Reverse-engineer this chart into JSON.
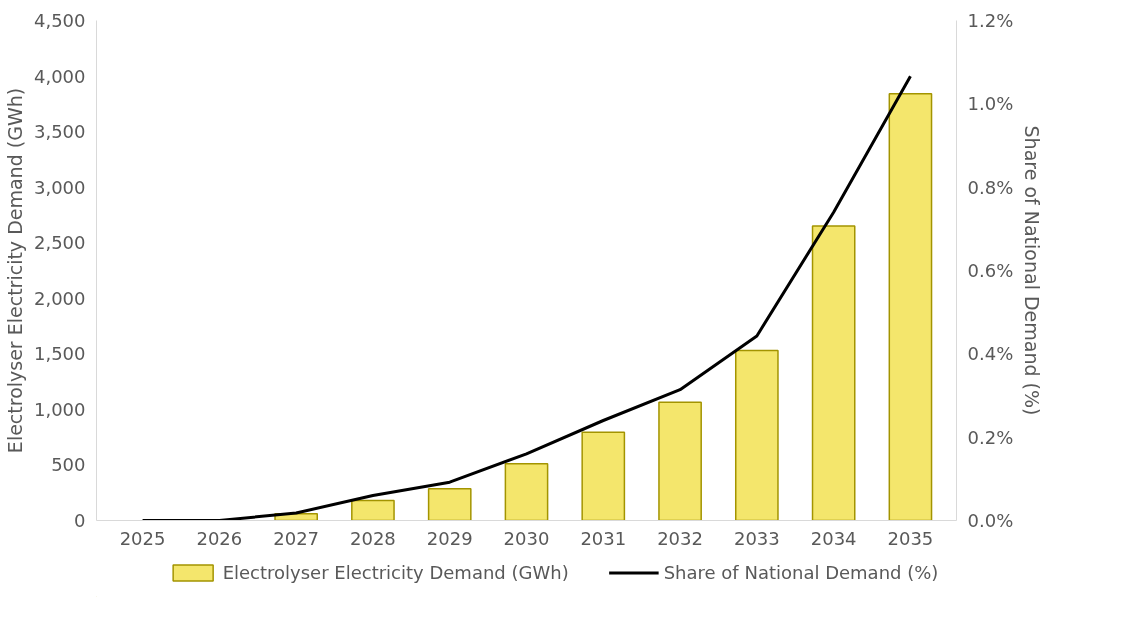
{
  "chart_data": {
    "type": "bar",
    "categories": [
      "2025",
      "2026",
      "2027",
      "2028",
      "2029",
      "2030",
      "2031",
      "2032",
      "2033",
      "2034",
      "2035"
    ],
    "ylabel": "Electrolyser Electricity Demand (GWh)",
    "y2label": "Share of National Demand (%)",
    "series": [
      {
        "name": "Electrolyser Electricity Demand (GWh)",
        "color": "#f4e66c",
        "values": [
          0,
          0,
          60,
          180,
          285,
          510,
          795,
          1065,
          1530,
          2650,
          3840
        ]
      },
      {
        "name": "Share of National Demand (%)",
        "type": "line",
        "axis": "y2",
        "color": "#000000",
        "values": [
          0,
          0,
          0.018,
          0.06,
          0.092,
          0.16,
          0.24,
          0.314,
          0.443,
          0.74,
          1.066
        ]
      }
    ],
    "ylim": [
      0,
      4500
    ],
    "yticks": [
      {
        "value": 0,
        "label": "0"
      },
      {
        "value": 500,
        "label": "500"
      },
      {
        "value": 1000,
        "label": "1,000"
      },
      {
        "value": 1500,
        "label": "1,500"
      },
      {
        "value": 2000,
        "label": "2,000"
      },
      {
        "value": 2500,
        "label": "2,500"
      },
      {
        "value": 3000,
        "label": "3,000"
      },
      {
        "value": 3500,
        "label": "3,500"
      },
      {
        "value": 4000,
        "label": "4,000"
      },
      {
        "value": 4500,
        "label": "4,500"
      }
    ],
    "y2lim": [
      0,
      1.2
    ],
    "y2ticks": [
      {
        "value": 0,
        "label": "0.0%"
      },
      {
        "value": 0.2,
        "label": "0.2%"
      },
      {
        "value": 0.4,
        "label": "0.4%"
      },
      {
        "value": 0.6,
        "label": "0.6%"
      },
      {
        "value": 0.8,
        "label": "0.8%"
      },
      {
        "value": 1.0,
        "label": "1.0%"
      },
      {
        "value": 1.2,
        "label": "1.2%"
      }
    ],
    "grid": false,
    "legend": "bottom"
  }
}
